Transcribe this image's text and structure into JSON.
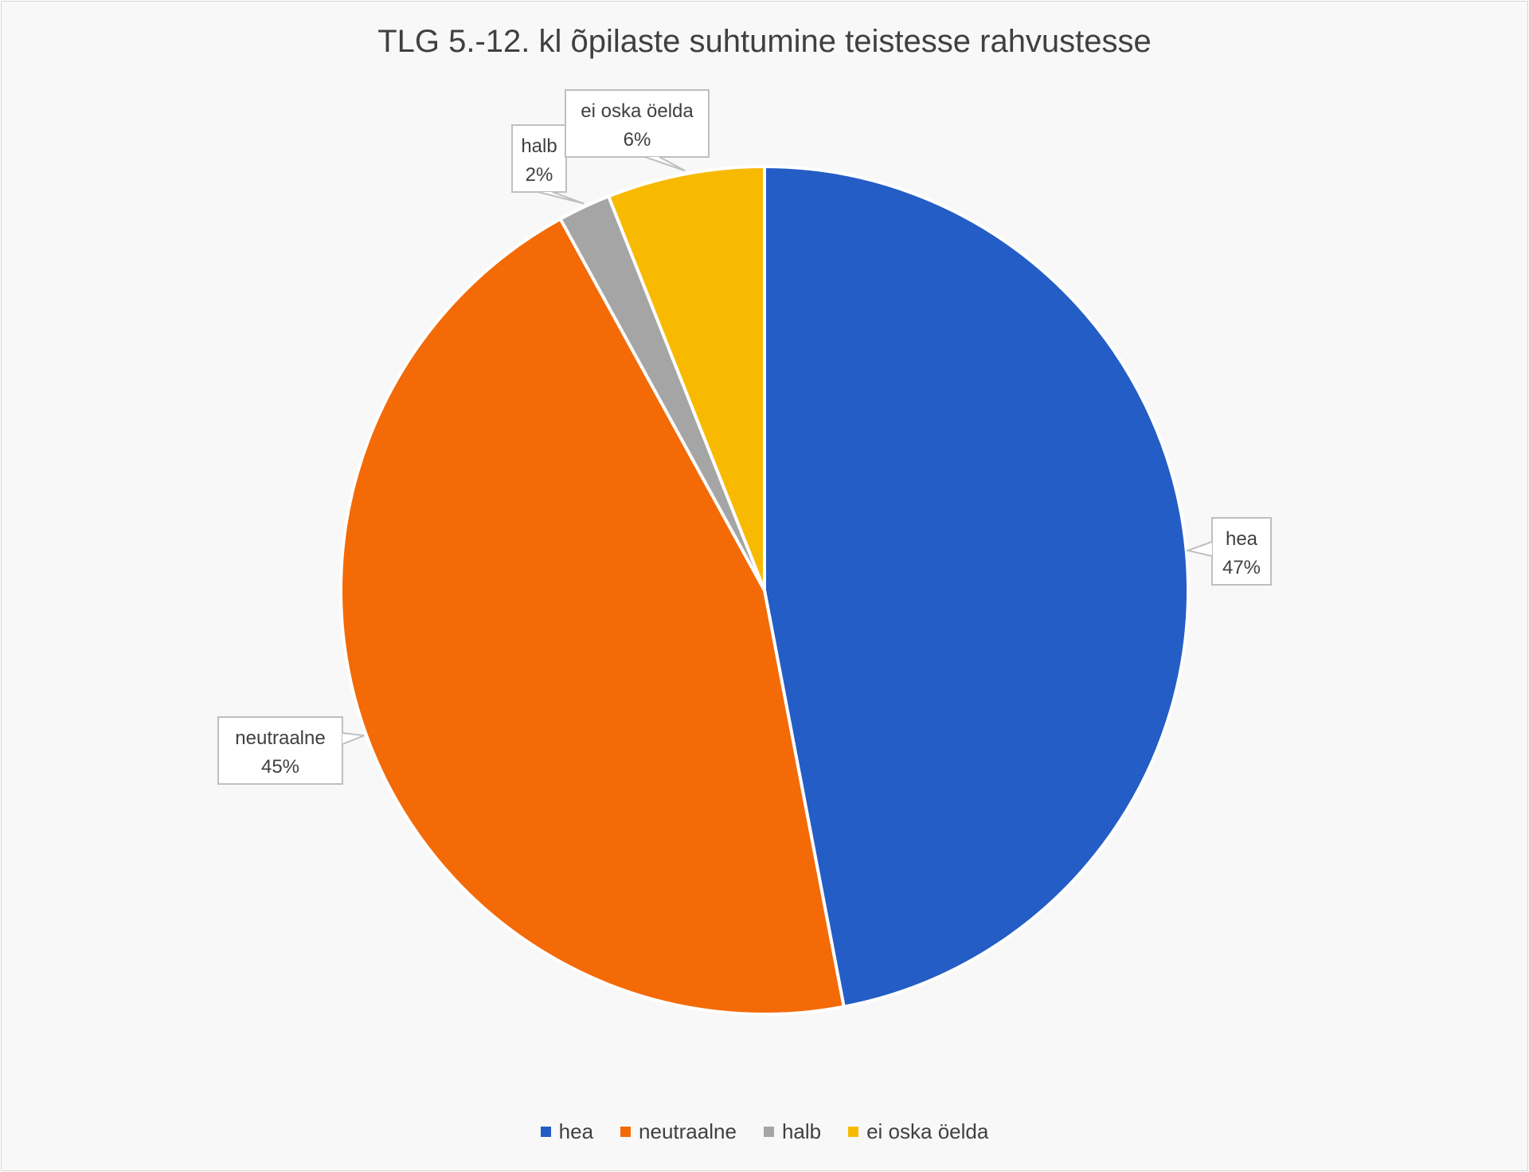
{
  "chart_data": {
    "type": "pie",
    "title": "TLG 5.-12. kl õpilaste suhtumine teistesse rahvustesse",
    "slices": [
      {
        "name": "hea",
        "value": 47,
        "label": "47%",
        "color": "#235DC5"
      },
      {
        "name": "neutraalne",
        "value": 45,
        "label": "45%",
        "color": "#F46A07"
      },
      {
        "name": "halb",
        "value": 2,
        "label": "2%",
        "color": "#A5A5A5"
      },
      {
        "name": "ei oska öelda",
        "value": 6,
        "label": "6%",
        "color": "#F7BA00"
      }
    ],
    "legend": {
      "placement": "bottom"
    },
    "data_labels": "callouts with category name and percentage"
  }
}
